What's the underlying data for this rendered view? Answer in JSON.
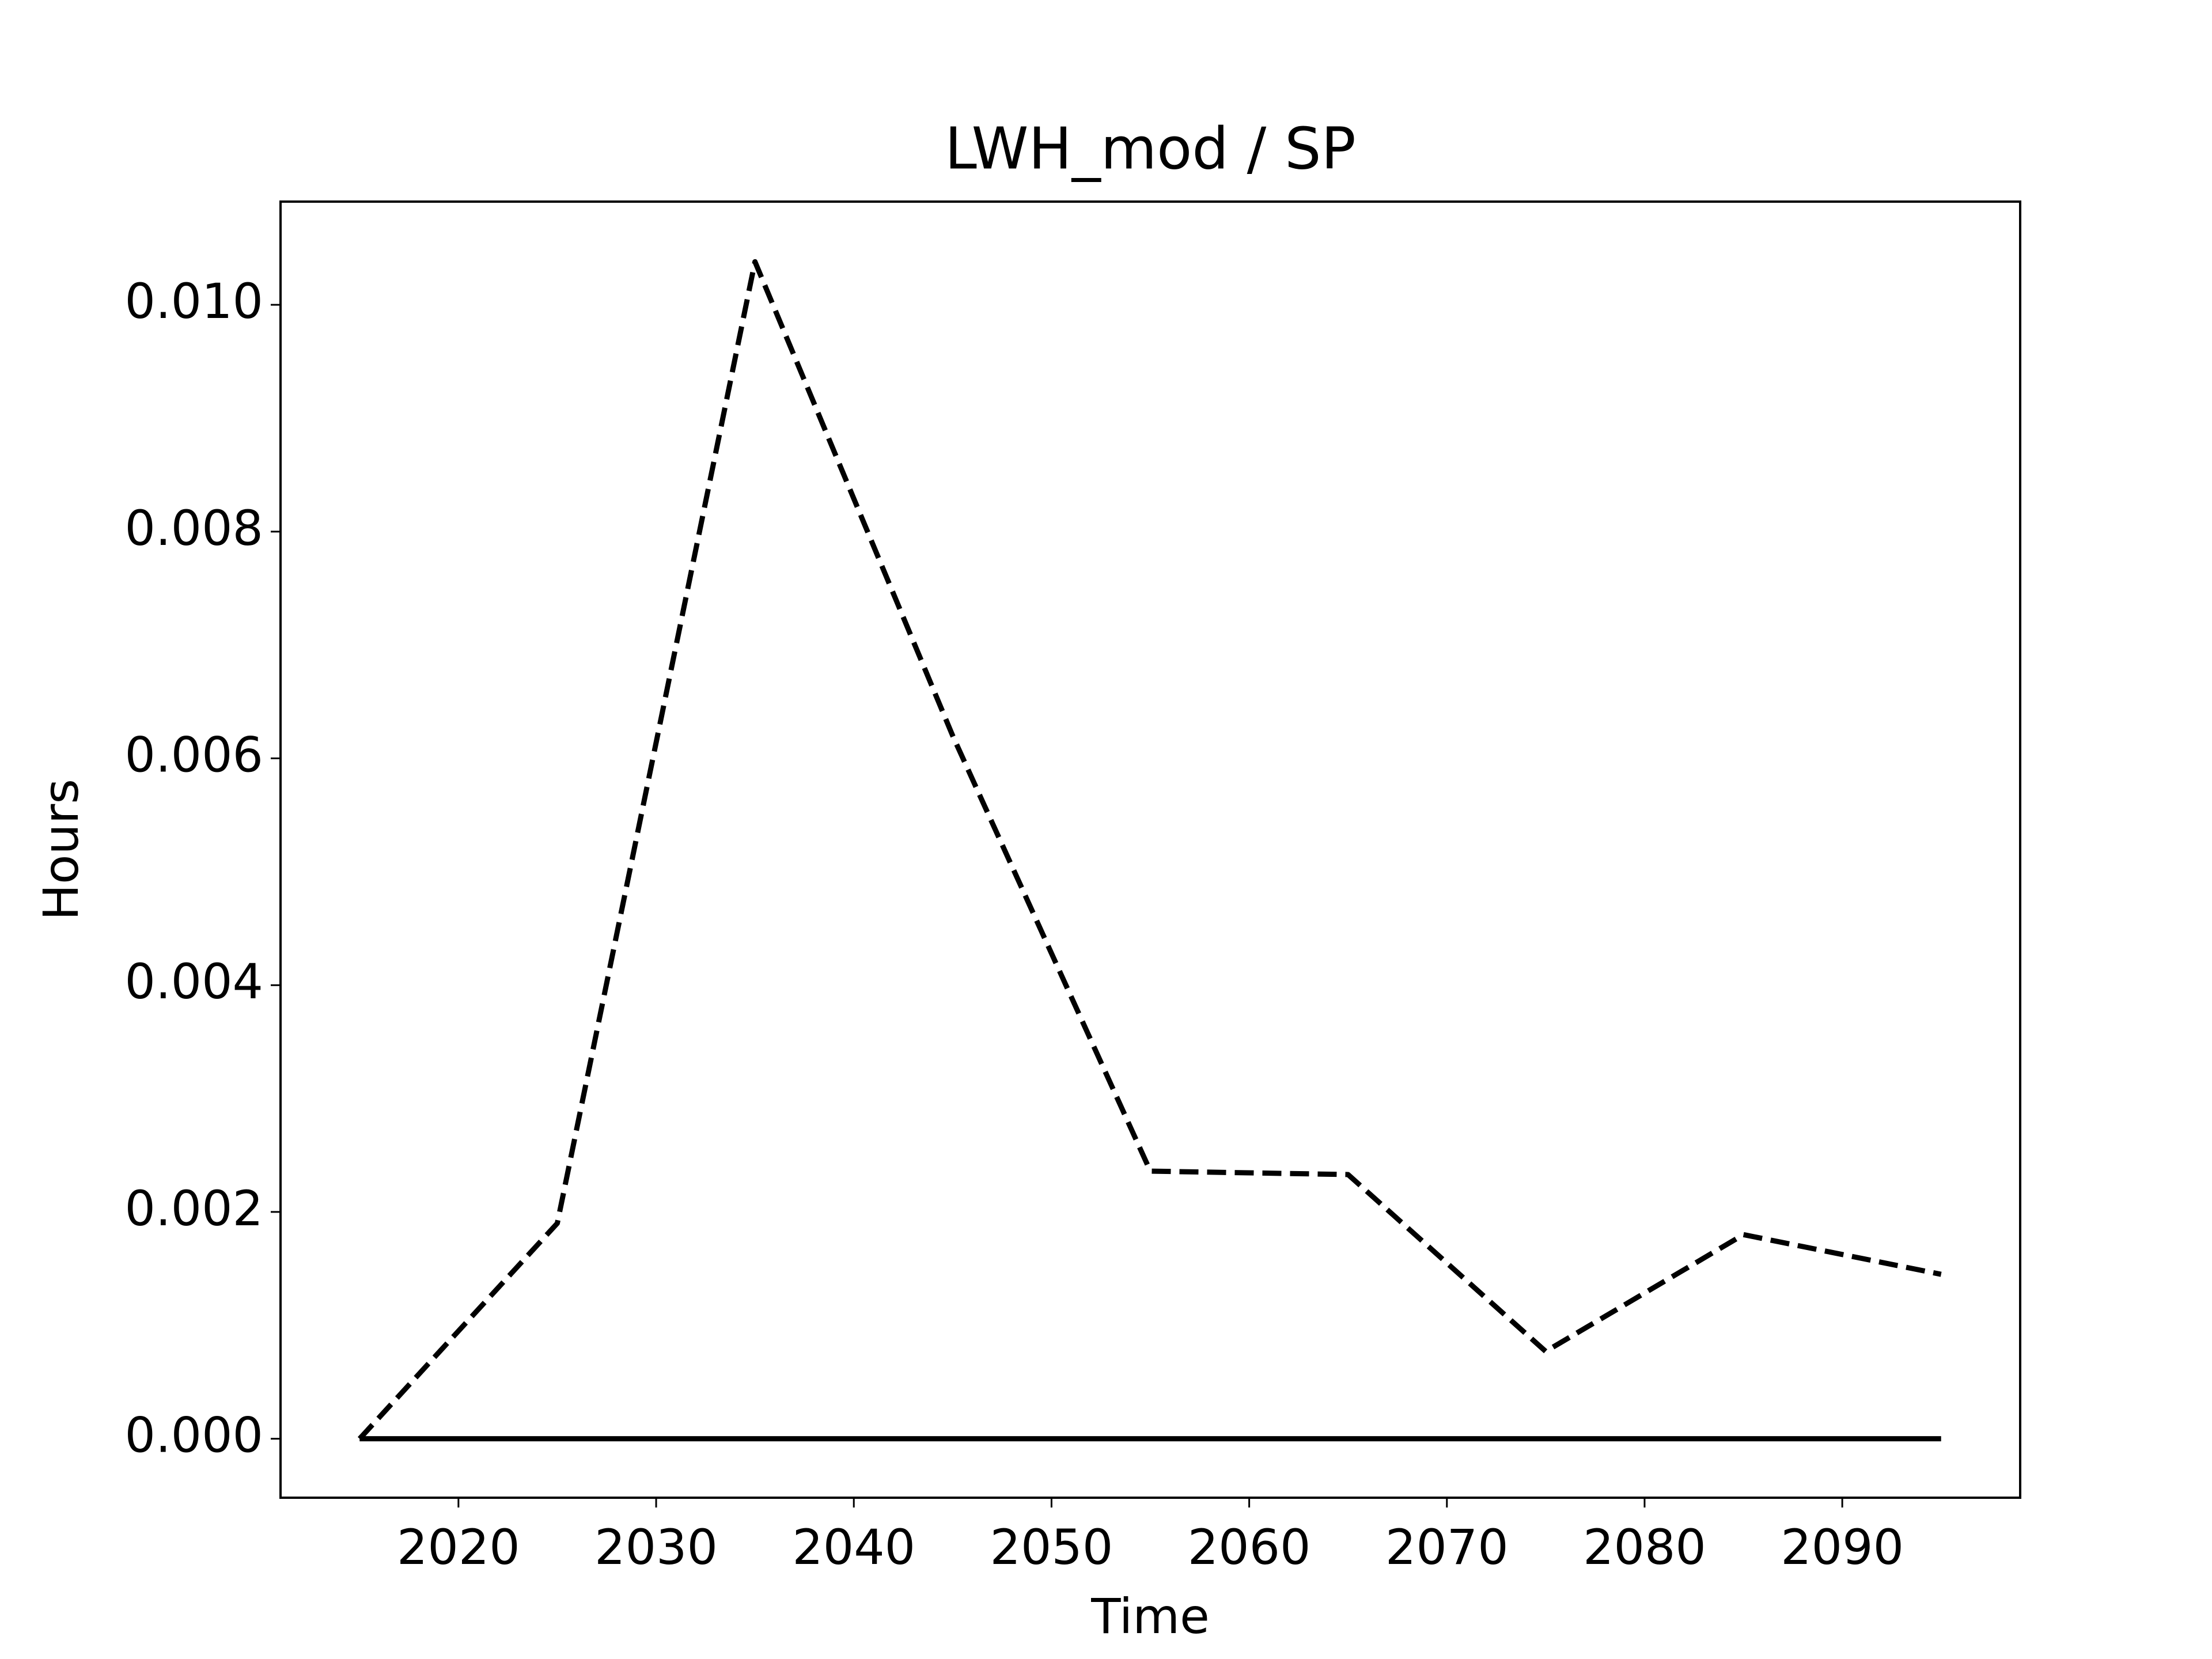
{
  "chart_data": {
    "type": "line",
    "title": "LWH_mod / SP",
    "x_label": "Time",
    "y_label": "Hours",
    "x": [
      2015,
      2025,
      2035,
      2045,
      2055,
      2065,
      2075,
      2085,
      2095
    ],
    "series": [
      {
        "color": "#000000",
        "line_style": "dashed",
        "values": [
          0,
          0.0019,
          0.01038,
          0.0062,
          0.00236,
          0.00233,
          0.00077,
          0.0018,
          0.00145
        ]
      },
      {
        "color": "#000000",
        "line_style": "solid",
        "values": [
          0,
          0,
          0,
          0,
          0,
          0,
          0,
          0,
          0
        ]
      }
    ],
    "xlim": [
      2011,
      2099
    ],
    "xticks": [
      2020,
      2030,
      2040,
      2050,
      2060,
      2070,
      2080,
      2090
    ],
    "ylim": [
      -0.00052,
      0.01091
    ],
    "yticks": [
      {
        "value": 0,
        "label": "0.000"
      },
      {
        "value": 0.002,
        "label": "0.002"
      },
      {
        "value": 0.004,
        "label": "0.004"
      },
      {
        "value": 0.006,
        "label": "0.006"
      },
      {
        "value": 0.008,
        "label": "0.008"
      },
      {
        "value": 0.01,
        "label": "0.010"
      }
    ],
    "grid": false
  }
}
